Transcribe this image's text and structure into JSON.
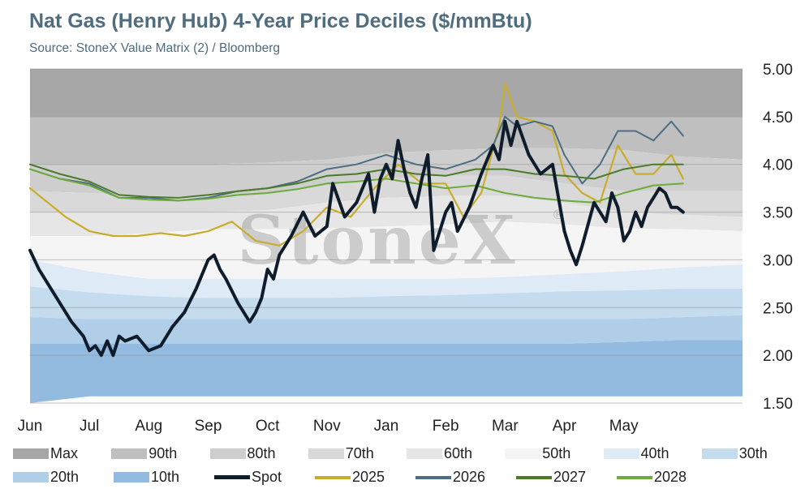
{
  "header": {
    "title": "Nat Gas (Henry Hub) 4-Year Price Deciles ($/mmBtu)",
    "subtitle": "Source: StoneX Value Matrix (2) / Bloomberg"
  },
  "watermark": {
    "text": "StoneX",
    "mark": "®"
  },
  "chart_data": {
    "type": "area",
    "title": "Nat Gas (Henry Hub) 4-Year Price Deciles ($/mmBtu)",
    "subtitle": "Source: StoneX Value Matrix (2) / Bloomberg",
    "x_range": [
      0,
      12
    ],
    "x_ticks": [
      {
        "x": 0,
        "label": "Jun"
      },
      {
        "x": 1,
        "label": "Jul"
      },
      {
        "x": 2,
        "label": "Aug"
      },
      {
        "x": 3,
        "label": "Sep"
      },
      {
        "x": 4,
        "label": "Oct"
      },
      {
        "x": 5,
        "label": "Nov"
      },
      {
        "x": 6,
        "label": "Jan"
      },
      {
        "x": 7,
        "label": "Feb"
      },
      {
        "x": 8,
        "label": "Mar"
      },
      {
        "x": 9,
        "label": "Apr"
      },
      {
        "x": 10,
        "label": "May"
      }
    ],
    "y_axis": {
      "position": "right",
      "range": [
        1.5,
        5.0
      ],
      "ticks": [
        "1.50",
        "2.00",
        "2.50",
        "3.00",
        "3.50",
        "4.00",
        "4.50",
        "5.00"
      ],
      "tick_values": [
        1.5,
        2.0,
        2.5,
        3.0,
        3.5,
        4.0,
        4.5,
        5.0
      ]
    },
    "grid": true,
    "legend_position": "bottom",
    "bands": [
      {
        "name": "Max",
        "color": "#a6a6a6",
        "lower": [
          4.5,
          4.5,
          4.5,
          4.5,
          4.5,
          4.5,
          4.5,
          4.5,
          4.5,
          4.5,
          4.5,
          4.5,
          4.5
        ]
      },
      {
        "name": "90th",
        "color": "#bfbfbf",
        "lower": [
          4.0,
          4.0,
          4.0,
          4.0,
          4.02,
          4.05,
          4.12,
          4.15,
          4.17,
          4.17,
          4.15,
          4.08,
          4.05
        ]
      },
      {
        "name": "80th",
        "color": "#cecece",
        "lower": [
          3.72,
          3.7,
          3.67,
          3.66,
          3.7,
          3.78,
          3.85,
          3.88,
          3.88,
          3.8,
          3.72,
          3.72,
          3.72
        ]
      },
      {
        "name": "70th",
        "color": "#d9d9d9",
        "lower": [
          3.5,
          3.5,
          3.5,
          3.5,
          3.52,
          3.6,
          3.65,
          3.67,
          3.67,
          3.6,
          3.5,
          3.47,
          3.45
        ]
      },
      {
        "name": "60th",
        "color": "#e6e6e6",
        "lower": [
          3.25,
          3.25,
          3.28,
          3.32,
          3.32,
          3.33,
          3.35,
          3.37,
          3.4,
          3.37,
          3.33,
          3.32,
          3.3
        ]
      },
      {
        "name": "50th",
        "color": "#f5f5f5",
        "lower": [
          3.0,
          2.88,
          2.8,
          2.8,
          2.8,
          2.8,
          2.8,
          2.8,
          2.82,
          2.85,
          2.88,
          2.92,
          2.95
        ]
      },
      {
        "name": "40th",
        "color": "#deeaf6",
        "lower": [
          2.72,
          2.66,
          2.62,
          2.6,
          2.6,
          2.6,
          2.62,
          2.63,
          2.65,
          2.67,
          2.68,
          2.7,
          2.7
        ]
      },
      {
        "name": "30th",
        "color": "#c5dcef",
        "lower": [
          2.4,
          2.38,
          2.38,
          2.38,
          2.38,
          2.38,
          2.38,
          2.38,
          2.38,
          2.38,
          2.38,
          2.4,
          2.42
        ]
      },
      {
        "name": "20th",
        "color": "#b0cee8",
        "lower": [
          2.12,
          2.12,
          2.12,
          2.12,
          2.12,
          2.12,
          2.12,
          2.12,
          2.12,
          2.12,
          2.14,
          2.16,
          2.16
        ]
      },
      {
        "name": "10th",
        "color": "#92bbdf",
        "lower": [
          1.5,
          1.57,
          1.57,
          1.57,
          1.57,
          1.57,
          1.57,
          1.57,
          1.57,
          1.57,
          1.57,
          1.57,
          1.57
        ]
      }
    ],
    "series": [
      {
        "name": "2025",
        "color": "#c8ad2d",
        "width": 2.2,
        "x": [
          0,
          0.3,
          0.6,
          1.0,
          1.4,
          1.8,
          2.2,
          2.6,
          3.0,
          3.4,
          3.8,
          4.2,
          4.6,
          5.0,
          5.4,
          5.8,
          6.2,
          6.6,
          7.0,
          7.3,
          7.6,
          7.9,
          8.0,
          8.2,
          8.5,
          8.8,
          9.0,
          9.3,
          9.6,
          9.9,
          10.2,
          10.5,
          10.8,
          11.0
        ],
        "y": [
          3.75,
          3.6,
          3.45,
          3.3,
          3.25,
          3.25,
          3.28,
          3.25,
          3.3,
          3.4,
          3.2,
          3.15,
          3.3,
          3.55,
          3.45,
          3.75,
          4.0,
          3.8,
          3.8,
          3.45,
          3.7,
          4.4,
          4.85,
          4.5,
          4.45,
          4.35,
          3.9,
          3.7,
          3.6,
          4.2,
          3.9,
          3.9,
          4.1,
          3.85
        ]
      },
      {
        "name": "2026",
        "color": "#4e6d82",
        "width": 2.0,
        "x": [
          0,
          0.5,
          1.0,
          1.5,
          2.0,
          2.5,
          3.0,
          3.5,
          4.0,
          4.5,
          5.0,
          5.5,
          6.0,
          6.5,
          7.0,
          7.5,
          7.8,
          8.0,
          8.2,
          8.5,
          8.8,
          9.0,
          9.3,
          9.6,
          9.9,
          10.2,
          10.5,
          10.8,
          11.0
        ],
        "y": [
          3.95,
          3.85,
          3.8,
          3.65,
          3.65,
          3.62,
          3.65,
          3.72,
          3.75,
          3.82,
          3.95,
          4.0,
          4.1,
          4.0,
          3.95,
          4.05,
          4.2,
          4.5,
          4.4,
          4.45,
          4.4,
          4.1,
          3.8,
          4.0,
          4.35,
          4.35,
          4.25,
          4.45,
          4.3
        ]
      },
      {
        "name": "2027",
        "color": "#4b7a2b",
        "width": 2.0,
        "x": [
          0,
          0.5,
          1.0,
          1.5,
          2.0,
          2.5,
          3.0,
          3.5,
          4.0,
          4.5,
          5.0,
          5.5,
          6.0,
          6.5,
          7.0,
          7.5,
          8.0,
          8.5,
          9.0,
          9.5,
          10.0,
          10.5,
          11.0
        ],
        "y": [
          4.0,
          3.9,
          3.82,
          3.68,
          3.66,
          3.65,
          3.68,
          3.72,
          3.75,
          3.8,
          3.88,
          3.9,
          3.95,
          3.9,
          3.88,
          3.95,
          3.95,
          3.9,
          3.88,
          3.85,
          3.95,
          4.0,
          4.0
        ]
      },
      {
        "name": "2028",
        "color": "#6dab3c",
        "width": 2.0,
        "x": [
          0,
          0.5,
          1.0,
          1.5,
          2.0,
          2.5,
          3.0,
          3.5,
          4.0,
          4.5,
          5.0,
          5.5,
          6.0,
          6.5,
          7.0,
          7.5,
          8.0,
          8.5,
          9.0,
          9.5,
          10.0,
          10.5,
          11.0
        ],
        "y": [
          3.95,
          3.85,
          3.78,
          3.65,
          3.63,
          3.62,
          3.64,
          3.68,
          3.7,
          3.74,
          3.8,
          3.82,
          3.85,
          3.8,
          3.75,
          3.78,
          3.7,
          3.65,
          3.62,
          3.6,
          3.7,
          3.78,
          3.8
        ]
      },
      {
        "name": "Spot",
        "color": "#0f1c2b",
        "width": 4.0,
        "x": [
          0,
          0.15,
          0.3,
          0.5,
          0.7,
          0.9,
          1.0,
          1.1,
          1.2,
          1.3,
          1.4,
          1.5,
          1.6,
          1.8,
          2.0,
          2.2,
          2.4,
          2.6,
          2.8,
          3.0,
          3.1,
          3.2,
          3.3,
          3.5,
          3.7,
          3.8,
          3.9,
          4.0,
          4.1,
          4.2,
          4.4,
          4.6,
          4.8,
          5.0,
          5.1,
          5.3,
          5.5,
          5.7,
          5.8,
          5.9,
          6.0,
          6.1,
          6.2,
          6.3,
          6.4,
          6.5,
          6.6,
          6.7,
          6.8,
          7.0,
          7.1,
          7.2,
          7.4,
          7.6,
          7.8,
          7.9,
          8.0,
          8.1,
          8.2,
          8.4,
          8.6,
          8.8,
          9.0,
          9.1,
          9.2,
          9.3,
          9.5,
          9.7,
          9.8,
          9.9,
          10.0,
          10.1,
          10.2,
          10.3,
          10.4,
          10.5,
          10.6,
          10.7,
          10.8,
          10.9,
          11.0
        ],
        "y": [
          3.1,
          2.9,
          2.75,
          2.55,
          2.35,
          2.2,
          2.05,
          2.1,
          2.0,
          2.15,
          2.0,
          2.2,
          2.15,
          2.2,
          2.05,
          2.1,
          2.3,
          2.45,
          2.7,
          3.0,
          3.05,
          2.9,
          2.8,
          2.55,
          2.35,
          2.45,
          2.6,
          2.9,
          2.8,
          3.05,
          3.25,
          3.5,
          3.25,
          3.35,
          3.8,
          3.45,
          3.6,
          3.9,
          3.5,
          3.85,
          4.0,
          3.85,
          4.25,
          3.95,
          3.7,
          3.55,
          3.85,
          4.1,
          3.1,
          3.5,
          3.6,
          3.3,
          3.55,
          3.9,
          4.2,
          4.05,
          4.45,
          4.2,
          4.45,
          4.1,
          3.9,
          4.0,
          3.3,
          3.1,
          2.95,
          3.15,
          3.6,
          3.4,
          3.7,
          3.55,
          3.2,
          3.3,
          3.5,
          3.35,
          3.55,
          3.65,
          3.75,
          3.7,
          3.55,
          3.55,
          3.5
        ]
      }
    ],
    "legend": [
      {
        "label": "Max",
        "kind": "band",
        "color": "#a6a6a6"
      },
      {
        "label": "90th",
        "kind": "band",
        "color": "#bfbfbf"
      },
      {
        "label": "80th",
        "kind": "band",
        "color": "#cecece"
      },
      {
        "label": "70th",
        "kind": "band",
        "color": "#d9d9d9"
      },
      {
        "label": "60th",
        "kind": "band",
        "color": "#e6e6e6"
      },
      {
        "label": "50th",
        "kind": "band",
        "color": "#f5f5f5"
      },
      {
        "label": "40th",
        "kind": "band",
        "color": "#deeaf6"
      },
      {
        "label": "30th",
        "kind": "band",
        "color": "#c5dcef"
      },
      {
        "label": "20th",
        "kind": "band",
        "color": "#b0cee8"
      },
      {
        "label": "10th",
        "kind": "band",
        "color": "#92bbdf"
      },
      {
        "label": "Spot",
        "kind": "line",
        "color": "#0f1c2b"
      },
      {
        "label": "2025",
        "kind": "line",
        "color": "#c8ad2d"
      },
      {
        "label": "2026",
        "kind": "line",
        "color": "#4e6d82"
      },
      {
        "label": "2027",
        "kind": "line",
        "color": "#4b7a2b"
      },
      {
        "label": "2028",
        "kind": "line",
        "color": "#6dab3c"
      }
    ]
  }
}
